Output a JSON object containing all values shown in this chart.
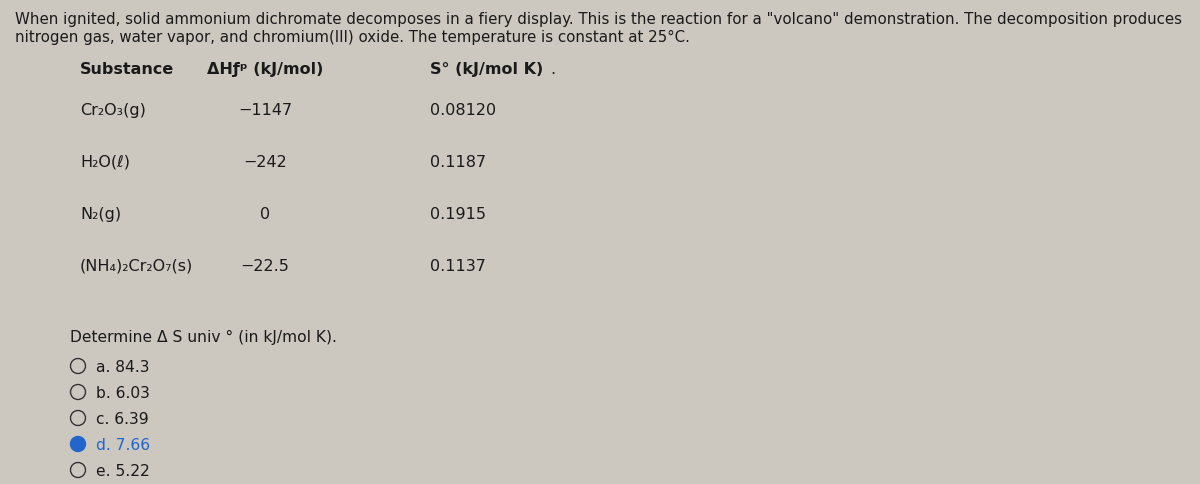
{
  "background_color": "#ccc8c0",
  "text_color": "#1a1a1a",
  "intro_text_line1": "When ignited, solid ammonium dichromate decomposes in a fiery display. This is the reaction for a \"volcano\" demonstration. The decomposition produces",
  "intro_text_line2": "nitrogen gas, water vapor, and chromium(III) oxide. The temperature is constant at 25°C.",
  "col_headers": [
    "Substance",
    "ΔHƒᵖ (kJ/mol)",
    "S° (kJ/mol K)"
  ],
  "table_rows": [
    [
      "Cr₂O₃(g)",
      "−1147",
      "0.08120"
    ],
    [
      "H₂O(ℓ)",
      "−242",
      "0.1187"
    ],
    [
      "N₂(g)",
      "0",
      "0.1915"
    ],
    [
      "(NH₄)₂Cr₂O₇(s)",
      "−22.5",
      "0.1137"
    ]
  ],
  "question_text": "Determine Δ S univ ° (in kJ/mol K).",
  "options": [
    {
      "label": "a. 84.3",
      "selected": false
    },
    {
      "label": "b. 6.03",
      "selected": false
    },
    {
      "label": "c. 6.39",
      "selected": false
    },
    {
      "label": "d. 7.66",
      "selected": true
    },
    {
      "label": "e. 5.22",
      "selected": false
    }
  ],
  "selected_fill_color": "#2266cc",
  "unselected_color": "#333333",
  "selected_text_color": "#2266cc",
  "font_size_intro": 10.8,
  "font_size_header": 11.5,
  "font_size_row": 11.5,
  "font_size_question": 11.2,
  "font_size_options": 11.2
}
